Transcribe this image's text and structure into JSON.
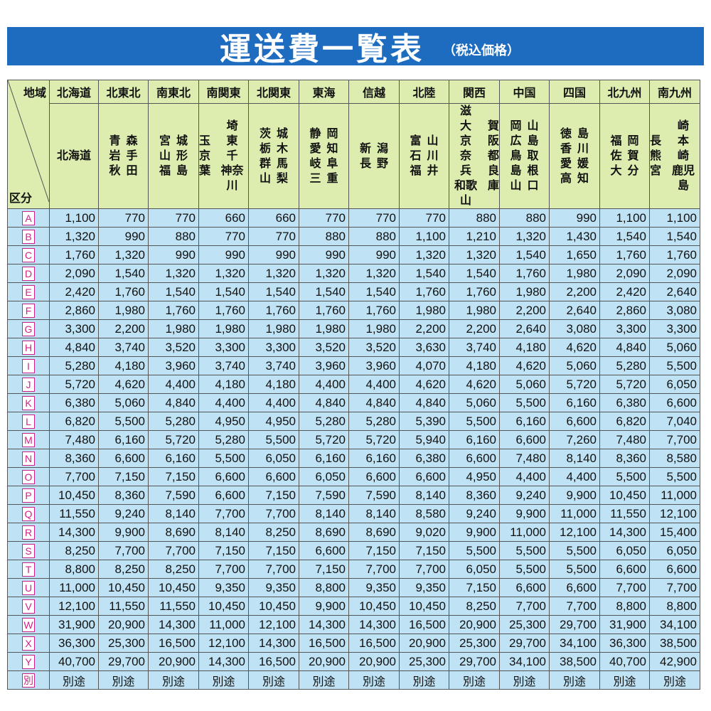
{
  "header": {
    "title": "運送費一覧表",
    "subtitle": "（税込価格）"
  },
  "table": {
    "corner_top": "地域",
    "corner_bottom": "区分",
    "regions": [
      {
        "name": "北海道",
        "prefs": [
          [
            "北海道"
          ]
        ]
      },
      {
        "name": "北東北",
        "prefs": [
          [
            "森",
            "手",
            "田"
          ],
          [
            "青",
            "岩",
            "秋"
          ]
        ]
      },
      {
        "name": "南東北",
        "prefs": [
          [
            "城",
            "形",
            "島"
          ],
          [
            "宮",
            "山",
            "福"
          ]
        ]
      },
      {
        "name": "南関東",
        "prefs": [
          [
            "埼",
            "東",
            "千",
            "神奈川"
          ],
          [
            "玉",
            "京",
            "葉"
          ]
        ]
      },
      {
        "name": "北関東",
        "prefs": [
          [
            "城",
            "木",
            "馬",
            "梨"
          ],
          [
            "茨",
            "栃",
            "群",
            "山"
          ]
        ]
      },
      {
        "name": "東海",
        "prefs": [
          [
            "岡",
            "知",
            "阜",
            "重"
          ],
          [
            "静",
            "愛",
            "岐",
            "三"
          ]
        ]
      },
      {
        "name": "信越",
        "prefs": [
          [
            "潟",
            "野"
          ],
          [
            "新",
            "長"
          ]
        ]
      },
      {
        "name": "北陸",
        "prefs": [
          [
            "山",
            "川",
            "井"
          ],
          [
            "富",
            "石",
            "福"
          ]
        ]
      },
      {
        "name": "関西",
        "prefs": [
          [
            "賀",
            "阪",
            "都",
            "良",
            "庫"
          ],
          [
            "滋",
            "大",
            "京",
            "奈",
            "兵",
            "和歌山"
          ]
        ]
      },
      {
        "name": "中国",
        "prefs": [
          [
            "山",
            "島",
            "取",
            "根",
            "口"
          ],
          [
            "岡",
            "広",
            "鳥",
            "島",
            "山"
          ]
        ]
      },
      {
        "name": "四国",
        "prefs": [
          [
            "島",
            "川",
            "媛",
            "知"
          ],
          [
            "徳",
            "香",
            "愛",
            "高"
          ]
        ]
      },
      {
        "name": "北九州",
        "prefs": [
          [
            "岡",
            "賀",
            "分"
          ],
          [
            "福",
            "佐",
            "大"
          ]
        ]
      },
      {
        "name": "南九州",
        "prefs": [
          [
            "崎",
            "本",
            "崎",
            "鹿児島"
          ],
          [
            "長",
            "熊",
            "宮"
          ]
        ]
      }
    ],
    "rows": [
      {
        "grade": "A",
        "prices": [
          "1,100",
          "770",
          "770",
          "660",
          "660",
          "770",
          "770",
          "770",
          "880",
          "880",
          "990",
          "1,100",
          "1,100"
        ]
      },
      {
        "grade": "B",
        "prices": [
          "1,320",
          "990",
          "880",
          "770",
          "770",
          "880",
          "880",
          "1,100",
          "1,210",
          "1,320",
          "1,430",
          "1,540",
          "1,540"
        ]
      },
      {
        "grade": "C",
        "prices": [
          "1,760",
          "1,320",
          "990",
          "990",
          "990",
          "990",
          "990",
          "1,320",
          "1,320",
          "1,540",
          "1,650",
          "1,760",
          "1,760"
        ]
      },
      {
        "grade": "D",
        "prices": [
          "2,090",
          "1,540",
          "1,320",
          "1,320",
          "1,320",
          "1,320",
          "1,320",
          "1,540",
          "1,540",
          "1,760",
          "1,980",
          "2,090",
          "2,090"
        ]
      },
      {
        "grade": "E",
        "prices": [
          "2,420",
          "1,760",
          "1,540",
          "1,540",
          "1,540",
          "1,540",
          "1,540",
          "1,760",
          "1,760",
          "1,980",
          "2,200",
          "2,420",
          "2,640"
        ]
      },
      {
        "grade": "F",
        "prices": [
          "2,860",
          "1,980",
          "1,760",
          "1,760",
          "1,760",
          "1,760",
          "1,760",
          "1,980",
          "1,980",
          "2,200",
          "2,640",
          "2,860",
          "3,080"
        ]
      },
      {
        "grade": "G",
        "prices": [
          "3,300",
          "2,200",
          "1,980",
          "1,980",
          "1,980",
          "1,980",
          "1,980",
          "2,200",
          "2,200",
          "2,640",
          "3,080",
          "3,300",
          "3,300"
        ]
      },
      {
        "grade": "H",
        "prices": [
          "4,840",
          "3,740",
          "3,520",
          "3,300",
          "3,300",
          "3,520",
          "3,520",
          "3,630",
          "3,740",
          "4,180",
          "4,620",
          "4,840",
          "5,060"
        ]
      },
      {
        "grade": "I",
        "prices": [
          "5,280",
          "4,180",
          "3,960",
          "3,740",
          "3,740",
          "3,960",
          "3,960",
          "4,070",
          "4,180",
          "4,620",
          "5,060",
          "5,280",
          "5,500"
        ]
      },
      {
        "grade": "J",
        "prices": [
          "5,720",
          "4,620",
          "4,400",
          "4,180",
          "4,180",
          "4,400",
          "4,400",
          "4,620",
          "4,620",
          "5,060",
          "5,720",
          "5,720",
          "6,050"
        ]
      },
      {
        "grade": "K",
        "prices": [
          "6,380",
          "5,060",
          "4,840",
          "4,400",
          "4,400",
          "4,840",
          "4,840",
          "4,840",
          "5,060",
          "5,500",
          "6,160",
          "6,380",
          "6,600"
        ]
      },
      {
        "grade": "L",
        "prices": [
          "6,820",
          "5,500",
          "5,280",
          "4,950",
          "4,950",
          "5,280",
          "5,280",
          "5,390",
          "5,500",
          "6,160",
          "6,600",
          "6,820",
          "7,040"
        ]
      },
      {
        "grade": "M",
        "prices": [
          "7,480",
          "6,160",
          "5,720",
          "5,280",
          "5,500",
          "5,720",
          "5,720",
          "5,940",
          "6,160",
          "6,600",
          "7,260",
          "7,480",
          "7,700"
        ]
      },
      {
        "grade": "N",
        "prices": [
          "8,360",
          "6,600",
          "6,160",
          "5,500",
          "6,050",
          "6,160",
          "6,160",
          "6,380",
          "6,600",
          "7,480",
          "8,140",
          "8,360",
          "8,580"
        ]
      },
      {
        "grade": "O",
        "prices": [
          "7,700",
          "7,150",
          "7,150",
          "6,600",
          "6,600",
          "6,050",
          "6,600",
          "6,600",
          "4,950",
          "4,400",
          "4,400",
          "5,500",
          "5,500"
        ]
      },
      {
        "grade": "P",
        "prices": [
          "10,450",
          "8,360",
          "7,590",
          "6,600",
          "7,150",
          "7,590",
          "7,590",
          "8,140",
          "8,360",
          "9,240",
          "9,900",
          "10,450",
          "11,000"
        ]
      },
      {
        "grade": "Q",
        "prices": [
          "11,550",
          "9,240",
          "8,140",
          "7,700",
          "7,700",
          "8,140",
          "8,140",
          "8,580",
          "9,240",
          "9,900",
          "11,000",
          "11,550",
          "12,100"
        ]
      },
      {
        "grade": "R",
        "prices": [
          "14,300",
          "9,900",
          "8,690",
          "8,140",
          "8,250",
          "8,690",
          "8,690",
          "9,020",
          "9,900",
          "11,000",
          "12,100",
          "14,300",
          "15,400"
        ]
      },
      {
        "grade": "S",
        "prices": [
          "8,250",
          "7,700",
          "7,700",
          "7,150",
          "7,150",
          "6,600",
          "7,150",
          "7,150",
          "5,500",
          "5,500",
          "5,500",
          "6,050",
          "6,050"
        ]
      },
      {
        "grade": "T",
        "prices": [
          "8,800",
          "8,250",
          "8,250",
          "7,700",
          "7,700",
          "7,150",
          "7,700",
          "7,700",
          "6,050",
          "5,500",
          "5,500",
          "6,600",
          "6,600"
        ]
      },
      {
        "grade": "U",
        "prices": [
          "11,000",
          "10,450",
          "10,450",
          "9,350",
          "9,350",
          "8,800",
          "9,350",
          "9,350",
          "7,150",
          "6,600",
          "6,600",
          "7,700",
          "7,700"
        ]
      },
      {
        "grade": "V",
        "prices": [
          "12,100",
          "11,550",
          "11,550",
          "10,450",
          "10,450",
          "9,900",
          "10,450",
          "10,450",
          "8,250",
          "7,700",
          "7,700",
          "8,800",
          "8,800"
        ]
      },
      {
        "grade": "W",
        "prices": [
          "31,900",
          "20,900",
          "14,300",
          "11,000",
          "12,100",
          "14,300",
          "14,300",
          "16,500",
          "20,900",
          "25,300",
          "29,700",
          "31,900",
          "34,100"
        ]
      },
      {
        "grade": "X",
        "prices": [
          "36,300",
          "25,300",
          "16,500",
          "12,100",
          "14,300",
          "16,500",
          "16,500",
          "20,900",
          "25,300",
          "29,700",
          "34,100",
          "36,300",
          "38,500"
        ]
      },
      {
        "grade": "Y",
        "prices": [
          "40,700",
          "29,700",
          "20,900",
          "14,300",
          "16,500",
          "20,900",
          "20,900",
          "25,300",
          "29,700",
          "34,100",
          "38,500",
          "40,700",
          "42,900"
        ]
      },
      {
        "grade": "別",
        "prices": [
          "別途",
          "別途",
          "別途",
          "別途",
          "別途",
          "別途",
          "別途",
          "別途",
          "別途",
          "別途",
          "別途",
          "別途",
          "別途"
        ]
      }
    ]
  }
}
